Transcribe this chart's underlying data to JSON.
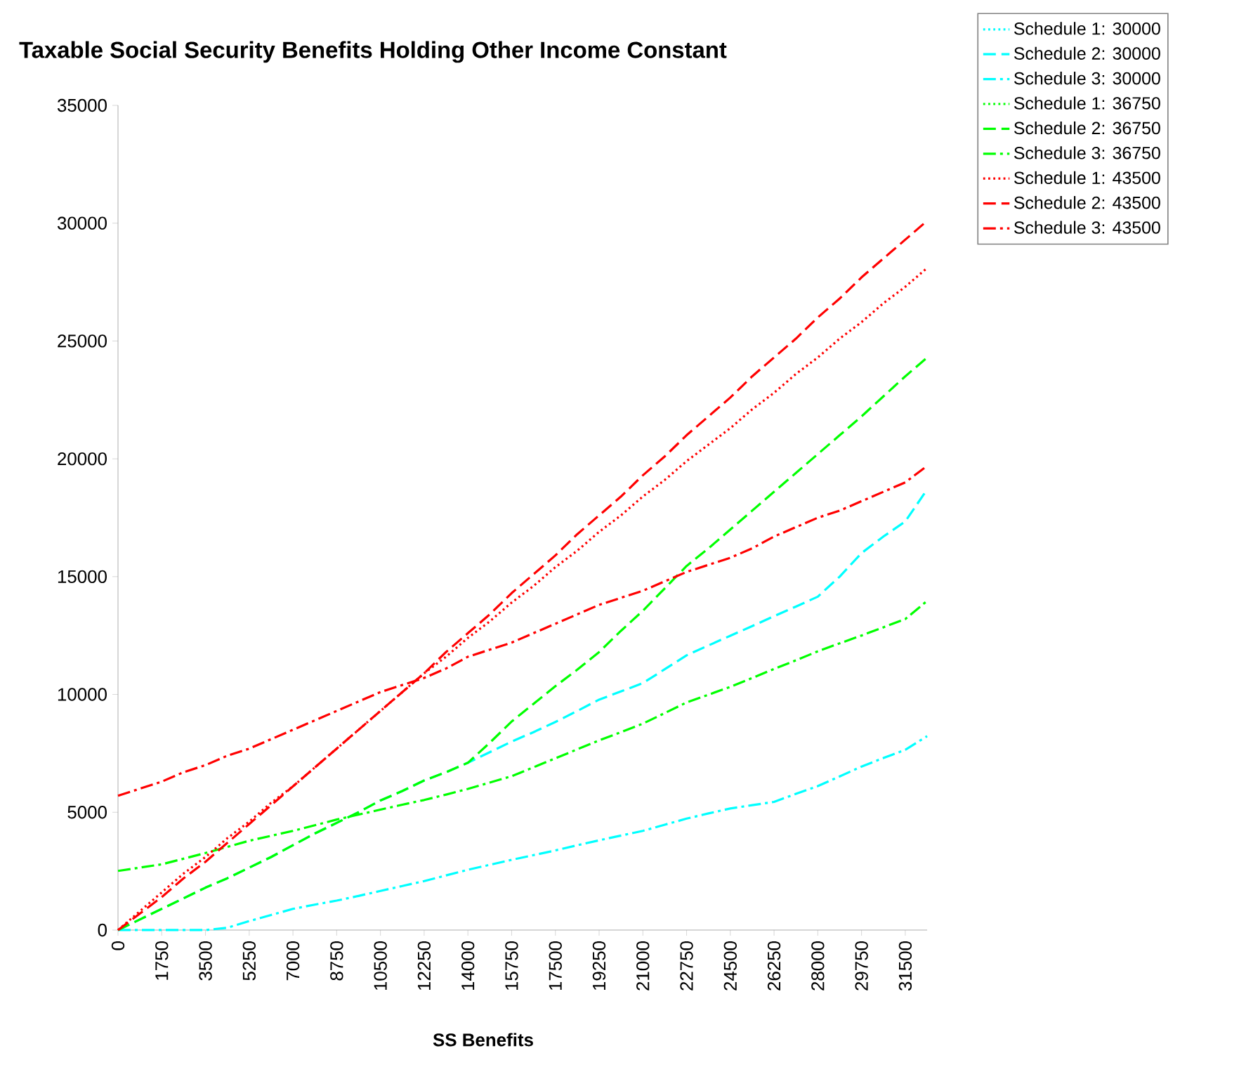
{
  "chart_data": {
    "type": "line",
    "title": "Taxable Social Security Benefits Holding Other Income Constant",
    "xlabel": "SS Benefits",
    "categories": [
      "0",
      null,
      "1750",
      null,
      "3500",
      null,
      "5250",
      null,
      "7000",
      null,
      "8750",
      null,
      "10500",
      null,
      "12250",
      null,
      "14000",
      null,
      "15750",
      null,
      "17500",
      null,
      "19250",
      null,
      "21000",
      null,
      "22750",
      null,
      "24500",
      null,
      "26250",
      null,
      "28000",
      null,
      "29750",
      null,
      "31500",
      null
    ],
    "ylim": [
      0,
      35000
    ],
    "yticks": [
      0,
      5000,
      10000,
      15000,
      20000,
      25000,
      30000,
      35000
    ],
    "grid": false,
    "legend": "top right",
    "series": [
      {
        "name": "Schedule 1: 30000",
        "color": "#00ffff",
        "line_style": "dotted",
        "values": [
          null,
          null,
          null,
          null,
          null,
          null,
          null,
          null,
          null,
          null,
          null,
          null,
          null,
          null,
          null,
          null,
          null,
          null,
          null,
          null,
          null,
          null,
          null,
          null,
          null,
          null,
          null,
          null,
          null,
          null,
          null,
          null,
          null,
          null,
          null,
          null,
          null,
          null
        ]
      },
      {
        "name": "Schedule 2: 30000",
        "color": "#00ffff",
        "line_style": "dashed",
        "values": [
          0,
          450,
          900,
          1350,
          1800,
          2200,
          2650,
          3100,
          3600,
          4100,
          4550,
          5000,
          5500,
          5900,
          6350,
          6700,
          7100,
          7550,
          8000,
          8400,
          8830,
          9300,
          9780,
          10130,
          10480,
          11070,
          11660,
          12080,
          12490,
          12900,
          13320,
          13730,
          14150,
          15000,
          16000,
          16700,
          17340,
          18700
        ]
      },
      {
        "name": "Schedule 3: 30000",
        "color": "#00ffff",
        "line_style": "dashdot",
        "values": [
          0,
          0,
          0,
          0,
          0,
          100,
          380,
          640,
          900,
          1080,
          1250,
          1450,
          1660,
          1870,
          2080,
          2320,
          2560,
          2770,
          2980,
          3180,
          3380,
          3600,
          3810,
          4010,
          4210,
          4470,
          4730,
          4950,
          5160,
          5300,
          5440,
          5780,
          6110,
          6520,
          6940,
          7300,
          7650,
          8230
        ]
      },
      {
        "name": "Schedule 1: 36750",
        "color": "#00ff00",
        "line_style": "dotted",
        "values": [
          null,
          null,
          null,
          null,
          null,
          null,
          null,
          null,
          null,
          null,
          null,
          null,
          null,
          null,
          null,
          null,
          null,
          null,
          null,
          null,
          null,
          null,
          null,
          null,
          null,
          null,
          null,
          null,
          null,
          null,
          null,
          null,
          null,
          null,
          null,
          null,
          null,
          null
        ]
      },
      {
        "name": "Schedule 2: 36750",
        "color": "#00ff00",
        "line_style": "dashed",
        "values": [
          0,
          450,
          900,
          1350,
          1800,
          2200,
          2650,
          3100,
          3600,
          4100,
          4550,
          5000,
          5500,
          5900,
          6350,
          6700,
          7100,
          7950,
          8850,
          9600,
          10350,
          11050,
          11800,
          12700,
          13550,
          14500,
          15450,
          16200,
          17000,
          17800,
          18600,
          19400,
          20200,
          21000,
          21800,
          22650,
          23500,
          24300
        ]
      },
      {
        "name": "Schedule 3: 36750",
        "color": "#00ff00",
        "line_style": "dashdot",
        "values": [
          2510,
          2650,
          2790,
          3030,
          3270,
          3530,
          3790,
          4000,
          4210,
          4450,
          4690,
          4900,
          5110,
          5320,
          5520,
          5750,
          5990,
          6260,
          6530,
          6910,
          7290,
          7670,
          8050,
          8400,
          8760,
          9210,
          9660,
          9990,
          10320,
          10700,
          11080,
          11450,
          11830,
          12170,
          12500,
          12850,
          13200,
          13970
        ]
      },
      {
        "name": "Schedule 1: 43500",
        "color": "#ff0000",
        "line_style": "dotted",
        "values": [
          0,
          800,
          1600,
          2400,
          3100,
          3900,
          4600,
          5400,
          6100,
          6900,
          7700,
          8500,
          9300,
          10100,
          10900,
          11600,
          12400,
          13100,
          13900,
          14600,
          15400,
          16100,
          16900,
          17600,
          18400,
          19100,
          19900,
          20600,
          21300,
          22100,
          22800,
          23600,
          24300,
          25100,
          25800,
          26600,
          27300,
          28100
        ]
      },
      {
        "name": "Schedule 2: 43500",
        "color": "#ff0000",
        "line_style": "dashed",
        "values": [
          0,
          700,
          1400,
          2200,
          2900,
          3700,
          4500,
          5300,
          6100,
          6900,
          7700,
          8500,
          9300,
          10100,
          10900,
          11800,
          12600,
          13400,
          14300,
          15100,
          15900,
          16800,
          17600,
          18400,
          19300,
          20100,
          21000,
          21800,
          22600,
          23500,
          24300,
          25100,
          26000,
          26800,
          27700,
          28500,
          29300,
          30100
        ]
      },
      {
        "name": "Schedule 3: 43500",
        "color": "#ff0000",
        "line_style": "dashdot",
        "values": [
          5700,
          6000,
          6300,
          6700,
          7000,
          7400,
          7700,
          8100,
          8500,
          8900,
          9300,
          9700,
          10100,
          10400,
          10700,
          11100,
          11600,
          11900,
          12200,
          12600,
          13000,
          13400,
          13800,
          14100,
          14400,
          14800,
          15200,
          15500,
          15800,
          16200,
          16700,
          17100,
          17500,
          17800,
          18200,
          18600,
          19000,
          19700
        ]
      }
    ]
  }
}
